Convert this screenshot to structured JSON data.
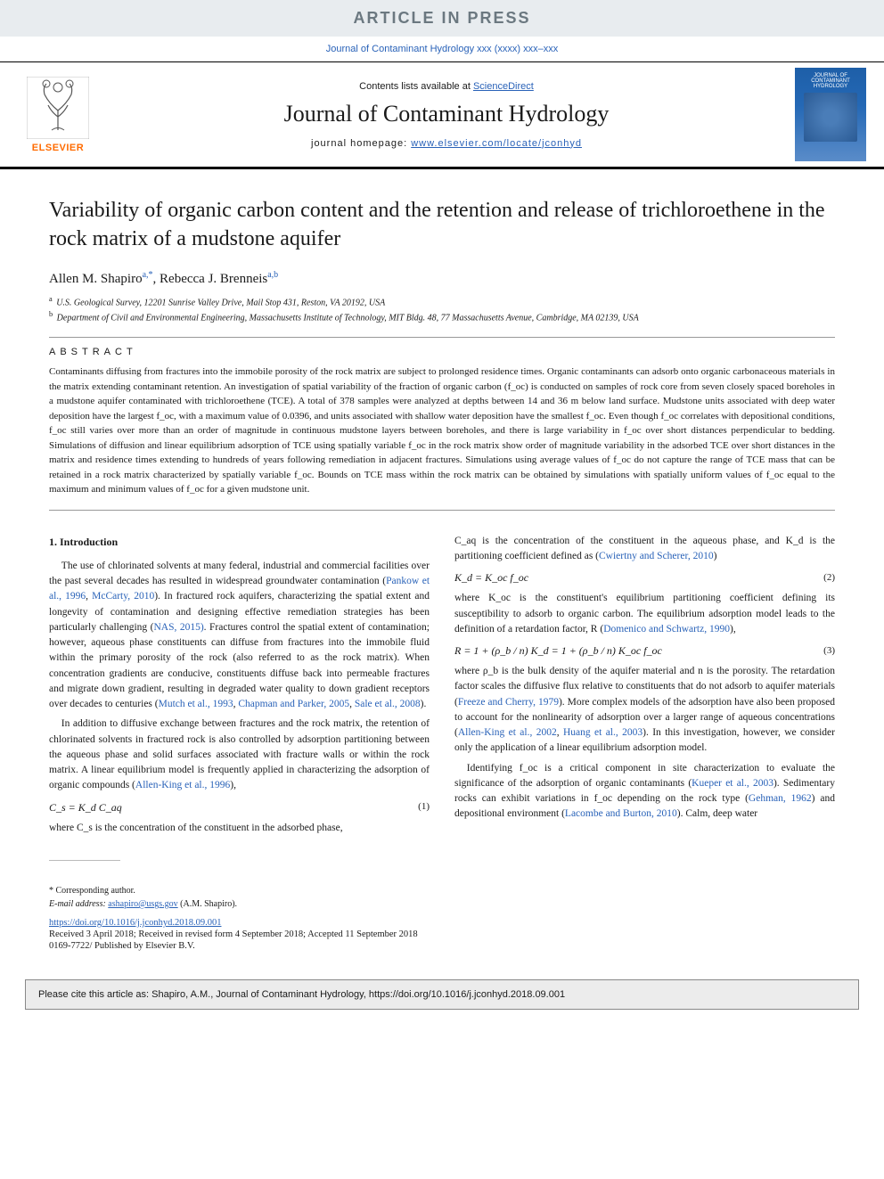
{
  "banner": {
    "text": "ARTICLE IN PRESS"
  },
  "journal_ref": "Journal of Contaminant Hydrology xxx (xxxx) xxx–xxx",
  "header": {
    "contents_prefix": "Contents lists available at ",
    "contents_link": "ScienceDirect",
    "journal_title": "Journal of Contaminant Hydrology",
    "homepage_prefix": "journal homepage: ",
    "homepage_url": "www.elsevier.com/locate/jconhyd",
    "publisher": "ELSEVIER",
    "cover_caption": "JOURNAL OF CONTAMINANT HYDROLOGY"
  },
  "article": {
    "title": "Variability of organic carbon content and the retention and release of trichloroethene in the rock matrix of a mudstone aquifer",
    "authors_html": "Allen M. Shapiro<sup>a,*</sup>, Rebecca J. Brenneis<sup>a,b</sup>",
    "affiliations": {
      "a": "U.S. Geological Survey, 12201 Sunrise Valley Drive, Mail Stop 431, Reston, VA 20192, USA",
      "b": "Department of Civil and Environmental Engineering, Massachusetts Institute of Technology, MIT Bldg. 48, 77 Massachusetts Avenue, Cambridge, MA 02139, USA"
    }
  },
  "abstract": {
    "label": "ABSTRACT",
    "text": "Contaminants diffusing from fractures into the immobile porosity of the rock matrix are subject to prolonged residence times. Organic contaminants can adsorb onto organic carbonaceous materials in the matrix extending contaminant retention. An investigation of spatial variability of the fraction of organic carbon (f_oc) is conducted on samples of rock core from seven closely spaced boreholes in a mudstone aquifer contaminated with trichloroethene (TCE). A total of 378 samples were analyzed at depths between 14 and 36 m below land surface. Mudstone units associated with deep water deposition have the largest f_oc, with a maximum value of 0.0396, and units associated with shallow water deposition have the smallest f_oc. Even though f_oc correlates with depositional conditions, f_oc still varies over more than an order of magnitude in continuous mudstone layers between boreholes, and there is large variability in f_oc over short distances perpendicular to bedding. Simulations of diffusion and linear equilibrium adsorption of TCE using spatially variable f_oc in the rock matrix show order of magnitude variability in the adsorbed TCE over short distances in the matrix and residence times extending to hundreds of years following remediation in adjacent fractures. Simulations using average values of f_oc do not capture the range of TCE mass that can be retained in a rock matrix characterized by spatially variable f_oc. Bounds on TCE mass within the rock matrix can be obtained by simulations with spatially uniform values of f_oc equal to the maximum and minimum values of f_oc for a given mudstone unit."
  },
  "section1": {
    "heading": "1. Introduction",
    "p1_a": "The use of chlorinated solvents at many federal, industrial and commercial facilities over the past several decades has resulted in widespread groundwater contamination (",
    "p1_cite1": "Pankow et al., 1996",
    "p1_b": ", ",
    "p1_cite2": "McCarty, 2010",
    "p1_c": "). In fractured rock aquifers, characterizing the spatial extent and longevity of contamination and designing effective remediation strategies has been particularly challenging (",
    "p1_cite3": "NAS, 2015)",
    "p1_d": ". Fractures control the spatial extent of contamination; however, aqueous phase constituents can diffuse from fractures into the immobile fluid within the primary porosity of the rock (also referred to as the rock matrix). When concentration gradients are conducive, constituents diffuse back into permeable fractures and migrate down gradient, resulting in degraded water quality to down gradient receptors over decades to centuries (",
    "p1_cite4": "Mutch et al., 1993",
    "p1_e": ", ",
    "p1_cite5": "Chapman and Parker, 2005",
    "p1_f": ", ",
    "p1_cite6": "Sale et al., 2008",
    "p1_g": ").",
    "p2_a": "In addition to diffusive exchange between fractures and the rock matrix, the retention of chlorinated solvents in fractured rock is also controlled by adsorption partitioning between the aqueous phase and solid surfaces associated with fracture walls or within the rock matrix. A linear equilibrium model is frequently applied in characterizing the adsorption of organic compounds (",
    "p2_cite1": "Allen-King et al., 1996",
    "p2_b": "),",
    "eq1": "C_s = K_d C_aq",
    "eq1_num": "(1)",
    "p3": "where C_s is the concentration of the constituent in the adsorbed phase,"
  },
  "col2": {
    "p1_a": "C_aq is the concentration of the constituent in the aqueous phase, and K_d is the partitioning coefficient defined as (",
    "p1_cite1": "Cwiertny and Scherer, 2010",
    "p1_b": ")",
    "eq2": "K_d = K_oc f_oc",
    "eq2_num": "(2)",
    "p2_a": "where K_oc is the constituent's equilibrium partitioning coefficient defining its susceptibility to adsorb to organic carbon. The equilibrium adsorption model leads to the definition of a retardation factor, R (",
    "p2_cite1": "Domenico and Schwartz, 1990",
    "p2_b": "),",
    "eq3": "R = 1 + (ρ_b / n) K_d = 1 + (ρ_b / n) K_oc f_oc",
    "eq3_num": "(3)",
    "p3_a": "where ρ_b is the bulk density of the aquifer material and n is the porosity. The retardation factor scales the diffusive flux relative to constituents that do not adsorb to aquifer materials (",
    "p3_cite1": "Freeze and Cherry, 1979",
    "p3_b": "). More complex models of the adsorption have also been proposed to account for the nonlinearity of adsorption over a larger range of aqueous concentrations (",
    "p3_cite2": "Allen-King et al., 2002",
    "p3_c": ", ",
    "p3_cite3": "Huang et al., 2003",
    "p3_d": "). In this investigation, however, we consider only the application of a linear equilibrium adsorption model.",
    "p4_a": "Identifying f_oc is a critical component in site characterization to evaluate the significance of the adsorption of organic contaminants (",
    "p4_cite1": "Kueper et al., 2003",
    "p4_b": "). Sedimentary rocks can exhibit variations in f_oc depending on the rock type (",
    "p4_cite2": "Gehman, 1962",
    "p4_c": ") and depositional environment (",
    "p4_cite3": "Lacombe and Burton, 2010",
    "p4_d": "). Calm, deep water"
  },
  "footnotes": {
    "corr": "* Corresponding author.",
    "email_label": "E-mail address: ",
    "email": "ashapiro@usgs.gov",
    "email_suffix": " (A.M. Shapiro)."
  },
  "footer": {
    "doi": "https://doi.org/10.1016/j.jconhyd.2018.09.001",
    "received": "Received 3 April 2018; Received in revised form 4 September 2018; Accepted 11 September 2018",
    "issn": "0169-7722/ Published by Elsevier B.V.",
    "citebox": "Please cite this article as: Shapiro, A.M., Journal of Contaminant Hydrology, https://doi.org/10.1016/j.jconhyd.2018.09.001"
  },
  "colors": {
    "link": "#2962b8",
    "banner_bg": "#e8ecef",
    "banner_text": "#6b7880",
    "elsevier_orange": "#ff6b00",
    "citebox_bg": "#ececec"
  }
}
